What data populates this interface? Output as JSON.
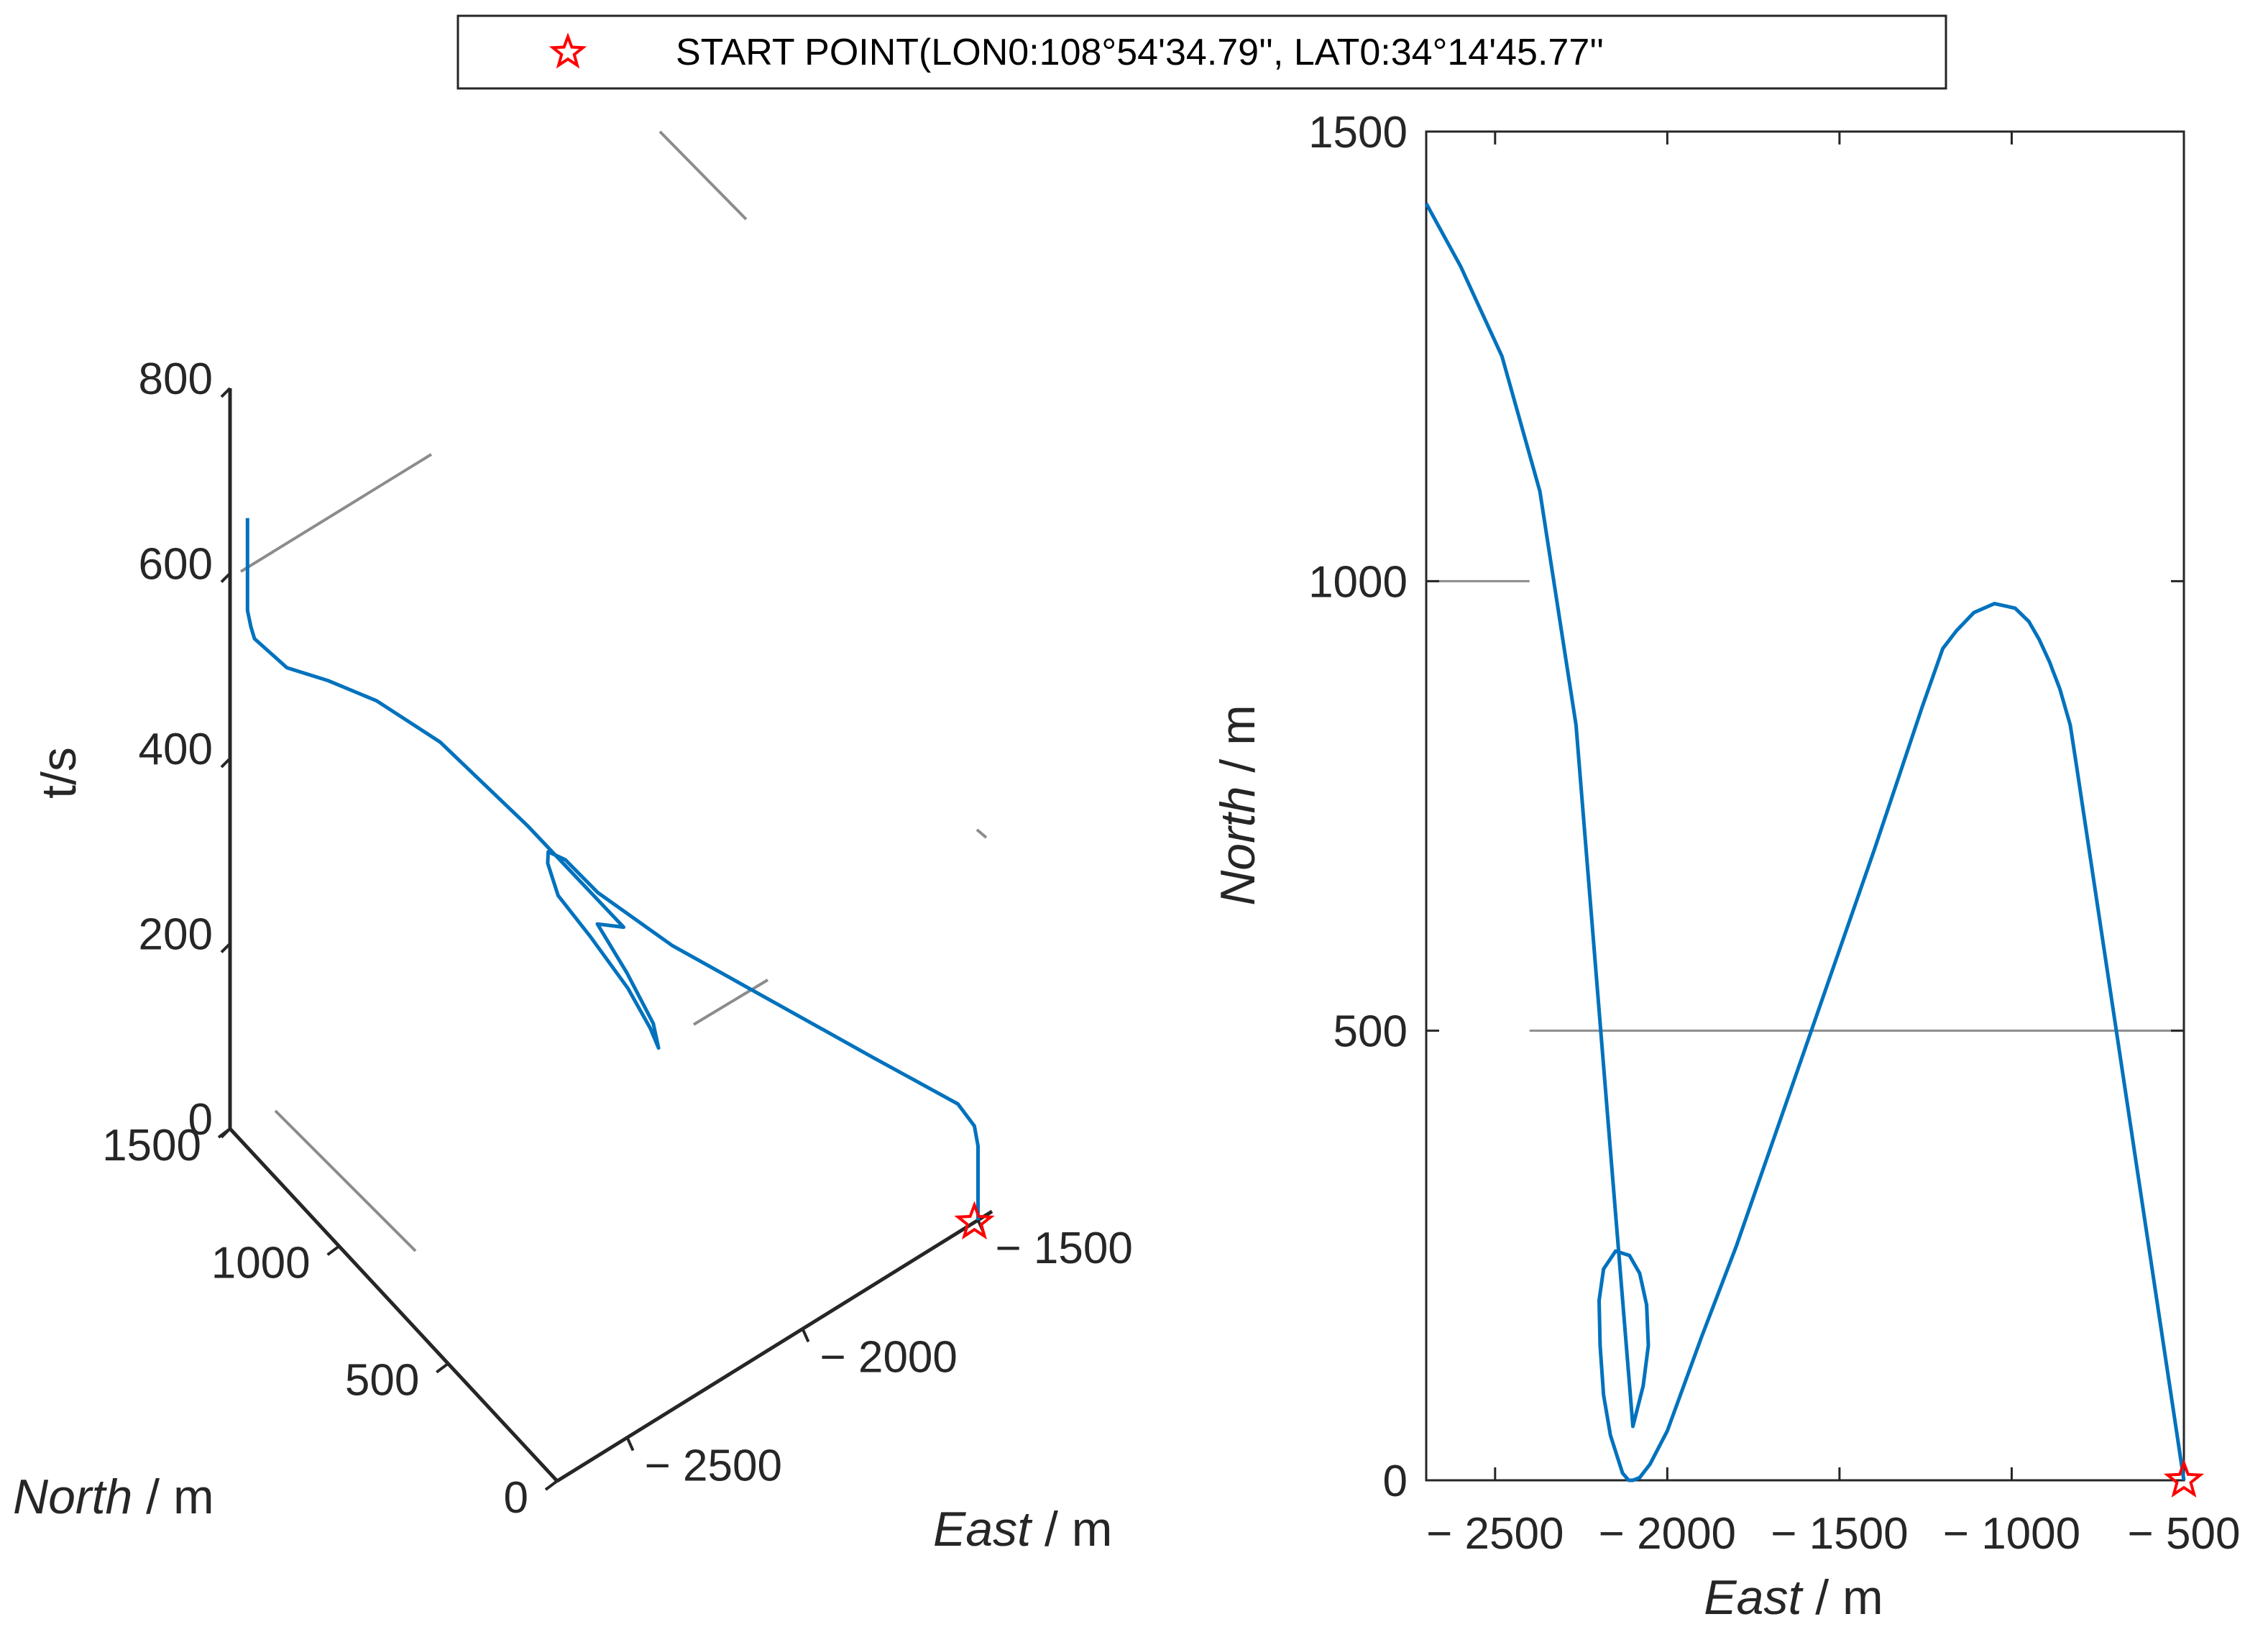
{
  "legend": {
    "label": "START POINT(LON0:108°54'34.79'', LAT0:34°14'45.77''",
    "marker": "red-star"
  },
  "colors": {
    "trajectory": "#0072BD",
    "start_marker": "#FF0000",
    "axis": "#262626",
    "grid": "#8C8C8C"
  },
  "chart_data": [
    {
      "id": "trajectory-3d",
      "type": "line",
      "view": "3d",
      "x_title": "East",
      "x_unit": " / m",
      "y_title": "North",
      "y_unit": " / m",
      "z_title": "t/s",
      "x_ticks": [
        "− 2500",
        "− 2000",
        "− 1500"
      ],
      "y_ticks": [
        "0",
        "500",
        "1000",
        "1500"
      ],
      "z_ticks": [
        "0",
        "200",
        "400",
        "600",
        "800"
      ],
      "xlim": [
        -2700,
        -1460
      ],
      "ylim": [
        0,
        1500
      ],
      "zlim": [
        0,
        800
      ],
      "series": [
        {
          "x": [
            -1500,
            -1500,
            -1504,
            -1520,
            -1650,
            -1800,
            -1950,
            -2050,
            -2080,
            -2110,
            -2130,
            -2150,
            -2145,
            -2125,
            -2105,
            -2100,
            -2115,
            -2140,
            -2150,
            -2100,
            -2200,
            -2300,
            -2400,
            -2500,
            -2600,
            -2680,
            -2690,
            -2700,
            -2700
          ],
          "y": [
            0,
            0,
            10,
            60,
            240,
            460,
            680,
            860,
            960,
            990,
            960,
            880,
            740,
            600,
            530,
            500,
            500,
            580,
            700,
            660,
            940,
            1180,
            1310,
            1370,
            1400,
            1420,
            1420,
            1420,
            1420
          ],
          "z": [
            0,
            80,
            100,
            115,
            150,
            190,
            230,
            265,
            282,
            290,
            290,
            280,
            270,
            245,
            215,
            200,
            230,
            270,
            295,
            290,
            352,
            405,
            440,
            470,
            500,
            545,
            560,
            580,
            680
          ]
        }
      ],
      "start_point": {
        "x": -1500,
        "y": 0,
        "z": 0
      },
      "grid": false
    },
    {
      "id": "trajectory-2d",
      "type": "line",
      "view": "2d",
      "x_title": "East",
      "x_unit": " / m",
      "y_title": "North",
      "y_unit": " / m",
      "x_ticks": [
        "− 2500",
        "− 2000",
        "− 1500",
        "− 1000",
        "− 500"
      ],
      "y_ticks": [
        "0",
        "500",
        "1000",
        "1500"
      ],
      "xlim": [
        -2700,
        -500
      ],
      "ylim": [
        0,
        1500
      ],
      "series": [
        {
          "x": [
            -500,
            -810,
            -830,
            -860,
            -880,
            -890,
            -920,
            -950,
            -990,
            -1050,
            -1110,
            -1160,
            -1200,
            -1260,
            -1330,
            -1400,
            -1500,
            -1600,
            -1700,
            -1800,
            -1900,
            -2000,
            -2050,
            -2080,
            -2100,
            -2112,
            -2130,
            -2165,
            -2185,
            -2195,
            -2198,
            -2185,
            -2150,
            -2110,
            -2080,
            -2060,
            -2055,
            -2070,
            -2100,
            -2170,
            -2265,
            -2370,
            -2480,
            -2600,
            -2700
          ],
          "y": [
            0,
            790,
            840,
            880,
            900,
            910,
            935,
            955,
            970,
            975,
            965,
            945,
            925,
            860,
            780,
            700,
            590,
            480,
            370,
            260,
            160,
            55,
            18,
            3,
            0,
            0,
            8,
            50,
            95,
            150,
            200,
            235,
            255,
            250,
            230,
            195,
            150,
            105,
            60,
            390,
            840,
            1100,
            1250,
            1350,
            1420
          ]
        }
      ],
      "start_point": {
        "x": -500,
        "y": 0
      },
      "reference_lines": [
        {
          "y": 500,
          "x_from": -2400,
          "x_to": -500
        },
        {
          "y": 1000,
          "x_from": -2700,
          "x_to": -2400
        }
      ],
      "grid": false
    }
  ]
}
